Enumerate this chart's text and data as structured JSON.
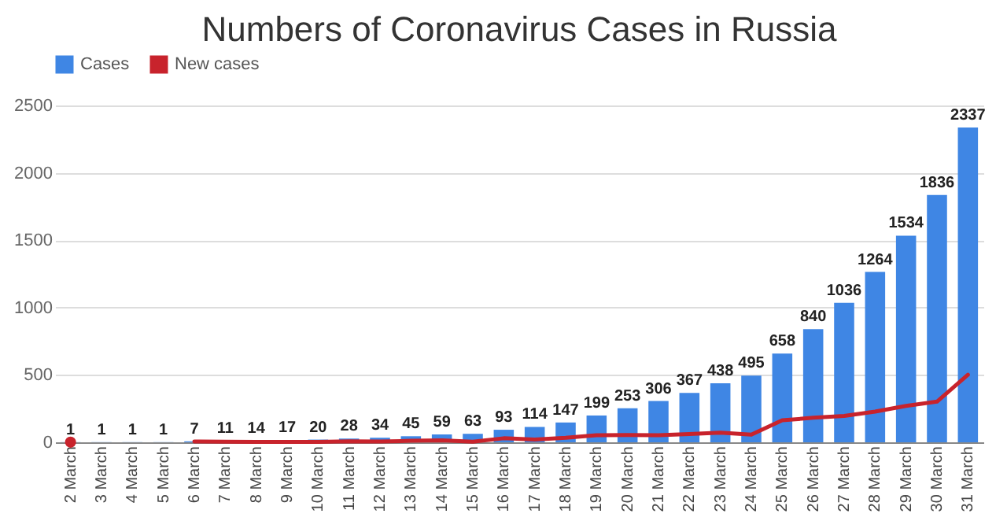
{
  "chart_data": {
    "type": "bar",
    "title": "Numbers of Coronavirus Cases in Russia",
    "categories": [
      "2 March",
      "3 March",
      "4 March",
      "5 March",
      "6 March",
      "7 March",
      "8 March",
      "9 March",
      "10 March",
      "11 March",
      "12 March",
      "13 March",
      "14 March",
      "15 March",
      "16 March",
      "17 March",
      "18 March",
      "19 March",
      "20 March",
      "21 March",
      "22 March",
      "23 March",
      "24 March",
      "25 March",
      "26 March",
      "27 March",
      "28 March",
      "29 March",
      "30 March",
      "31 March"
    ],
    "series": [
      {
        "name": "Cases",
        "color": "#3f86e4",
        "data_labels": true,
        "values": [
          1,
          1,
          1,
          1,
          7,
          11,
          14,
          17,
          20,
          28,
          34,
          45,
          59,
          63,
          93,
          114,
          147,
          199,
          253,
          306,
          367,
          438,
          495,
          658,
          840,
          1036,
          1264,
          1534,
          1836,
          2337
        ]
      },
      {
        "name": "New cases",
        "type": "line",
        "color": "#c8232c",
        "values": [
          1,
          null,
          null,
          null,
          6,
          4,
          3,
          3,
          3,
          8,
          6,
          11,
          14,
          4,
          30,
          21,
          33,
          52,
          54,
          53,
          61,
          71,
          57,
          163,
          182,
          196,
          228,
          270,
          302,
          501
        ]
      }
    ],
    "ylim": [
      0,
      2500
    ],
    "yticks": [
      0,
      500,
      1000,
      1500,
      2000,
      2500
    ],
    "grid": "y",
    "legend": "top"
  }
}
